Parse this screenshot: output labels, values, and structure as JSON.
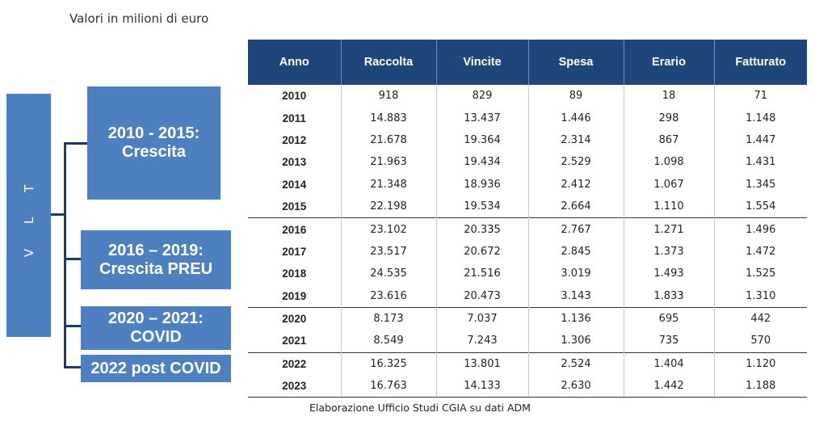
{
  "caption": "Valori in milioni di euro",
  "source": "Elaborazione Ufficio Studi CGIA su dati ADM",
  "diagram": {
    "vlt_label": "V L T",
    "phases": [
      {
        "label": "2010 - 2015:\nCrescita"
      },
      {
        "label": "2016 – 2019:\nCrescita PREU"
      },
      {
        "label": "2020 – 2021:\nCOVID"
      },
      {
        "label": "2022 post COVID"
      }
    ]
  },
  "table": {
    "headers": [
      "Anno",
      "Raccolta",
      "Vincite",
      "Spesa",
      "Erario",
      "Fatturato"
    ],
    "rows": [
      [
        "2010",
        "918",
        "829",
        "89",
        "18",
        "71"
      ],
      [
        "2011",
        "14.883",
        "13.437",
        "1.446",
        "298",
        "1.148"
      ],
      [
        "2012",
        "21.678",
        "19.364",
        "2.314",
        "867",
        "1.447"
      ],
      [
        "2013",
        "21.963",
        "19.434",
        "2.529",
        "1.098",
        "1.431"
      ],
      [
        "2014",
        "21.348",
        "18.936",
        "2.412",
        "1.067",
        "1.345"
      ],
      [
        "2015",
        "22.198",
        "19.534",
        "2.664",
        "1.110",
        "1.554"
      ],
      [
        "2016",
        "23.102",
        "20.335",
        "2.767",
        "1.271",
        "1.496"
      ],
      [
        "2017",
        "23.517",
        "20.672",
        "2.845",
        "1.373",
        "1.472"
      ],
      [
        "2018",
        "24.535",
        "21.516",
        "3.019",
        "1.493",
        "1.525"
      ],
      [
        "2019",
        "23.616",
        "20.473",
        "3.143",
        "1.833",
        "1.310"
      ],
      [
        "2020",
        "8.173",
        "7.037",
        "1.136",
        "695",
        "442"
      ],
      [
        "2021",
        "8.549",
        "7.243",
        "1.306",
        "735",
        "570"
      ],
      [
        "2022",
        "16.325",
        "13.801",
        "2.524",
        "1.404",
        "1.120"
      ],
      [
        "2023",
        "16.763",
        "14.133",
        "2.630",
        "1.442",
        "1.188"
      ]
    ]
  },
  "colors": {
    "header_bg": "#1f467a",
    "box_bg": "#4e7fbf",
    "connector": "#1f3b63"
  }
}
